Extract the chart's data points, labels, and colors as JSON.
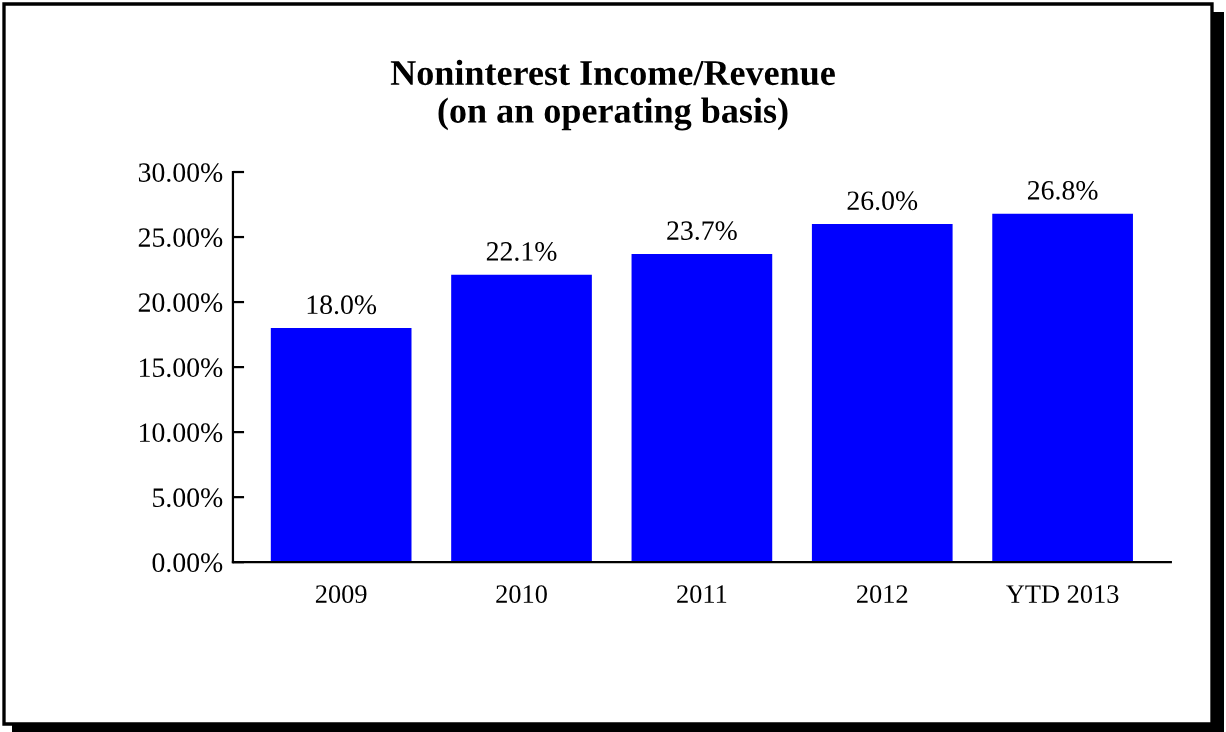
{
  "chart_data": {
    "type": "bar",
    "title": "Noninterest Income/Revenue\n(on an operating basis)",
    "categories": [
      "2009",
      "2010",
      "2011",
      "2012",
      "YTD 2013"
    ],
    "values": [
      18.0,
      22.1,
      23.7,
      26.0,
      26.8
    ],
    "value_labels": [
      "18.0%",
      "22.1%",
      "23.7%",
      "26.0%",
      "26.8%"
    ],
    "color": "#0000ff",
    "ylim": [
      0,
      30
    ],
    "yticks": [
      {
        "value": 0,
        "label": "0.00%"
      },
      {
        "value": 5,
        "label": "5.00%"
      },
      {
        "value": 10,
        "label": "10.00%"
      },
      {
        "value": 15,
        "label": "15.00%"
      },
      {
        "value": 20,
        "label": "20.00%"
      },
      {
        "value": 25,
        "label": "25.00%"
      },
      {
        "value": 30,
        "label": "30.00%"
      }
    ],
    "grid": false,
    "legend": false
  }
}
